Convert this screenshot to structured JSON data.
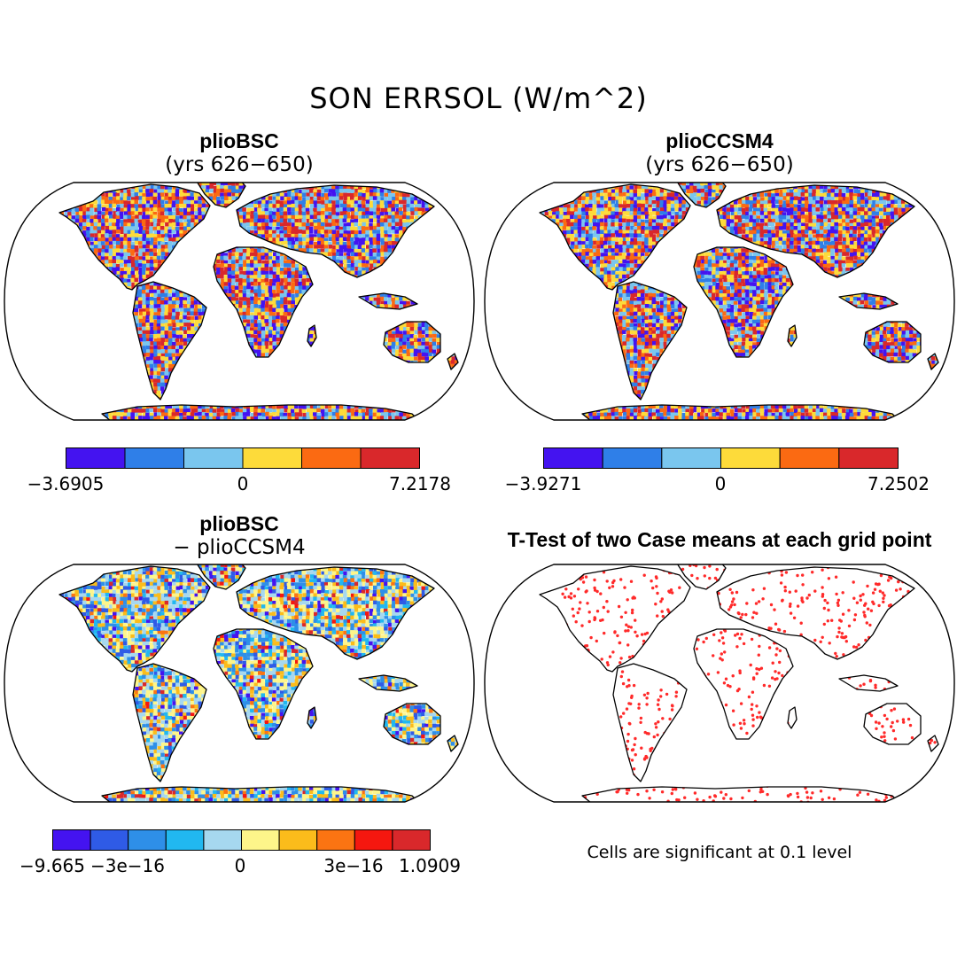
{
  "figure_title": "SON ERRSOL (W/m^2)",
  "panels": [
    {
      "id": "top-left",
      "title": "plioBSC",
      "subtitle": "(yrs 626−650)",
      "colorbar": {
        "colors": [
          "#4413f0",
          "#2f7fe8",
          "#7ac6ee",
          "#fddb3a",
          "#fb6a12",
          "#d9282b"
        ],
        "tick_labels": [
          "−3.6905",
          "0",
          "7.2178"
        ]
      },
      "field_palette": [
        "#4413f0",
        "#2f7fe8",
        "#7ac6ee",
        "#fddb3a",
        "#fb6a12",
        "#d9282b"
      ],
      "field_weights": [
        0.17,
        0.14,
        0.16,
        0.18,
        0.15,
        0.2
      ]
    },
    {
      "id": "top-right",
      "title": "plioCCSM4",
      "subtitle": "(yrs 626−650)",
      "colorbar": {
        "colors": [
          "#4413f0",
          "#2f7fe8",
          "#7ac6ee",
          "#fddb3a",
          "#fb6a12",
          "#d9282b"
        ],
        "tick_labels": [
          "−3.9271",
          "0",
          "7.2502"
        ]
      },
      "field_palette": [
        "#4413f0",
        "#2f7fe8",
        "#7ac6ee",
        "#fddb3a",
        "#fb6a12",
        "#d9282b"
      ],
      "field_weights": [
        0.17,
        0.14,
        0.16,
        0.19,
        0.15,
        0.19
      ]
    },
    {
      "id": "bottom-left",
      "title": "plioBSC",
      "subtitle": "− plioCCSM4",
      "colorbar": {
        "colors": [
          "#4413f0",
          "#2f5be6",
          "#2e8fe8",
          "#21b8f0",
          "#a6d8ef",
          "#fdf58a",
          "#fbbc1b",
          "#fb7412",
          "#f5170f",
          "#d9282b"
        ],
        "tick_labels": [
          "−9.665",
          "−3e−16",
          "0",
          "3e−16",
          "1.0909"
        ]
      },
      "field_palette": [
        "#4413f0",
        "#2f5be6",
        "#2e8fe8",
        "#21b8f0",
        "#a6d8ef",
        "#fdf58a",
        "#fbbc1b",
        "#fb7412",
        "#f5170f",
        "#d9282b"
      ],
      "field_weights": [
        0.05,
        0.08,
        0.14,
        0.1,
        0.2,
        0.2,
        0.13,
        0.05,
        0.02,
        0.03
      ]
    },
    {
      "id": "bottom-right",
      "title": "T-Test of two Case means at each grid point",
      "note": "Cells are significant at 0.1 level",
      "dot_color": "#ff2a2a"
    }
  ]
}
